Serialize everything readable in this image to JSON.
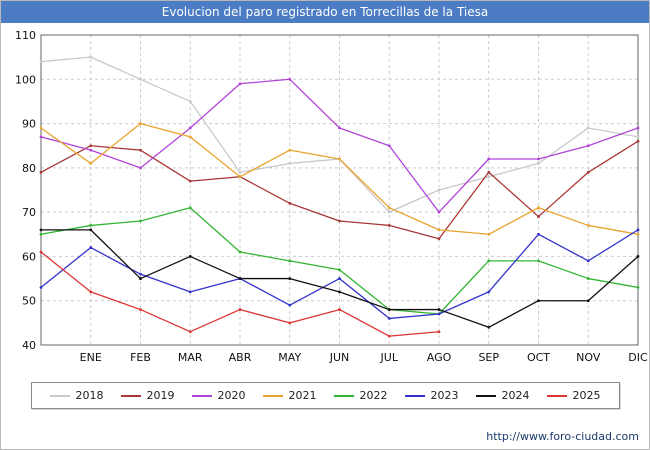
{
  "title": "Evolucion del paro registrado en Torrecillas de la Tiesa",
  "footer": {
    "url": "http://www.foro-ciudad.com"
  },
  "colors": {
    "title_bar": "#4b7cc4",
    "grid": "#cccccc",
    "plot_border": "#666666",
    "footer_text": "#1b3a6b"
  },
  "chart_data": {
    "type": "line",
    "title": "Evolucion del paro registrado en Torrecillas de la Tiesa",
    "xlabel": "",
    "ylabel": "",
    "ylim": [
      40,
      110
    ],
    "ytick_step": 10,
    "grid": true,
    "legend_position": "bottom",
    "x_labels": [
      "",
      "ENE",
      "FEB",
      "MAR",
      "ABR",
      "MAY",
      "JUN",
      "JUL",
      "AGO",
      "SEP",
      "OCT",
      "NOV",
      "DIC"
    ],
    "series": [
      {
        "name": "2018",
        "color": "#c9c9c9",
        "values": [
          104,
          105,
          100,
          95,
          79,
          81,
          82,
          70,
          75,
          78,
          81,
          89,
          87
        ]
      },
      {
        "name": "2019",
        "color": "#a93636",
        "values": [
          79,
          85,
          84,
          77,
          78,
          72,
          68,
          67,
          64,
          79,
          69,
          79,
          86
        ]
      },
      {
        "name": "2020",
        "color": "#b144d8",
        "values": [
          87,
          84,
          80,
          89,
          99,
          100,
          89,
          85,
          70,
          82,
          82,
          85,
          89
        ]
      },
      {
        "name": "2021",
        "color": "#e8a42c",
        "values": [
          89,
          81,
          90,
          87,
          78,
          84,
          82,
          71,
          66,
          65,
          71,
          67,
          65
        ]
      },
      {
        "name": "2022",
        "color": "#33b533",
        "values": [
          65,
          67,
          68,
          71,
          61,
          59,
          57,
          48,
          47,
          59,
          59,
          55,
          53
        ]
      },
      {
        "name": "2023",
        "color": "#3333cc",
        "values": [
          53,
          62,
          56,
          52,
          55,
          49,
          55,
          46,
          47,
          52,
          65,
          59,
          66
        ]
      },
      {
        "name": "2024",
        "color": "#111111",
        "values": [
          66,
          66,
          55,
          60,
          55,
          55,
          52,
          48,
          48,
          44,
          50,
          50,
          60
        ]
      },
      {
        "name": "2025",
        "color": "#dd3333",
        "values": [
          61,
          52,
          48,
          43,
          48,
          45,
          48,
          42,
          43,
          null,
          null,
          null,
          null
        ]
      }
    ]
  }
}
